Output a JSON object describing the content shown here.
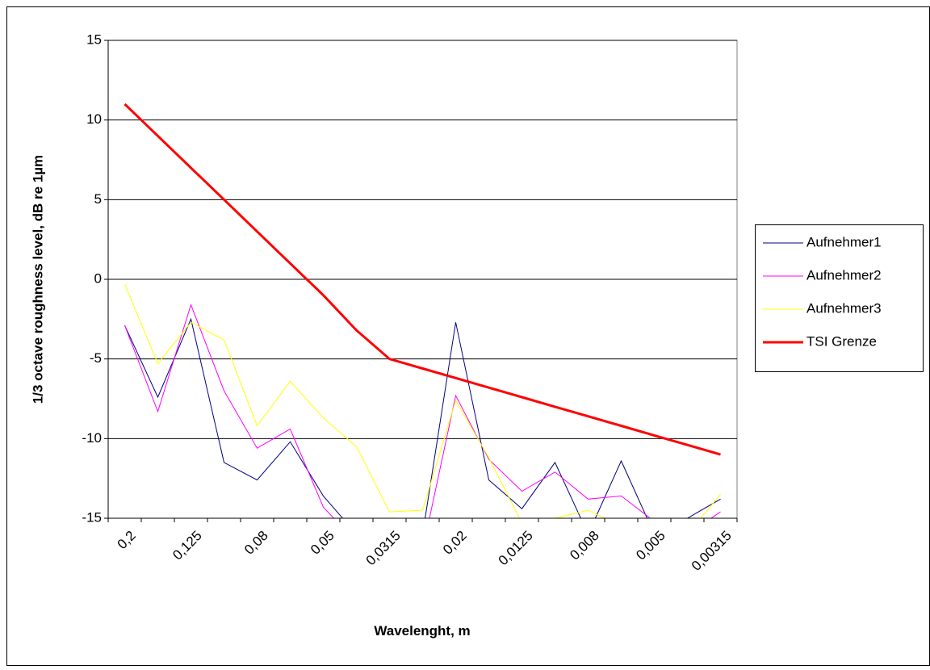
{
  "chart_data": {
    "type": "line",
    "x_label": "Wavelenght, m",
    "y_label": "1/3 octave roughness level, dB re 1µm",
    "categories": [
      "0,2",
      null,
      "0,125",
      null,
      "0,08",
      null,
      "0,05",
      null,
      "0,0315",
      null,
      "0,02",
      null,
      "0,0125",
      null,
      "0,008",
      null,
      "0,005",
      null,
      "0,00315"
    ],
    "series": [
      {
        "name": "Aufnehmer1",
        "color": "#000080",
        "width": 1,
        "values": [
          -2.9,
          -7.4,
          -2.5,
          -11.5,
          -12.6,
          -10.2,
          -13.6,
          -16,
          -17,
          -16,
          -2.7,
          -12.6,
          -14.4,
          -11.5,
          -16,
          -11.4,
          -16,
          -15,
          -13.8
        ]
      },
      {
        "name": "Aufnehmer2",
        "color": "#ff00ff",
        "width": 1,
        "values": [
          -2.9,
          -8.3,
          -1.6,
          -7,
          -10.6,
          -9.4,
          -14.3,
          -16.5,
          -17,
          -17,
          -7.3,
          -11.3,
          -13.3,
          -12.1,
          -13.8,
          -13.6,
          -15.2,
          -16,
          -14.6
        ]
      },
      {
        "name": "Aufnehmer3",
        "color": "#ffff00",
        "width": 1,
        "values": [
          -0.3,
          -5.3,
          -2.7,
          -3.8,
          -9.2,
          -6.4,
          -8.7,
          -10.5,
          -14.6,
          -14.5,
          -7.6,
          -11.2,
          -15.3,
          -15,
          -14.5,
          -15.5,
          -16,
          -16,
          -13.5
        ]
      },
      {
        "name": "TSI Grenze",
        "color": "#ff0000",
        "width": 3,
        "values": [
          11,
          9,
          7,
          5,
          3,
          1,
          -1,
          -3.2,
          -5,
          -5.6,
          -6.2,
          -6.8,
          -7.4,
          -8,
          -8.6,
          -9.2,
          -9.8,
          -10.4,
          -11
        ]
      }
    ],
    "ylim": [
      -15,
      15
    ],
    "yticks": [
      -15,
      -10,
      -5,
      0,
      5,
      10,
      15
    ],
    "grid": true,
    "legend": "right"
  }
}
